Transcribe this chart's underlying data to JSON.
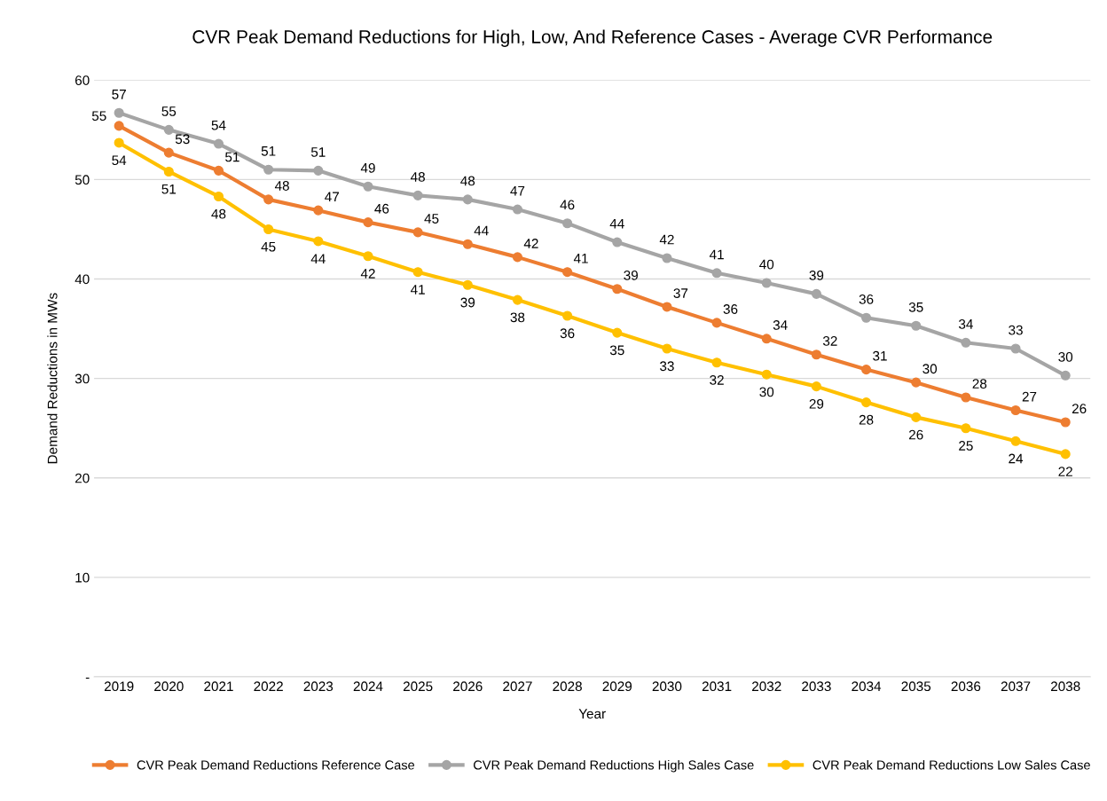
{
  "chart_data": {
    "type": "line",
    "title": "CVR Peak Demand Reductions for High, Low, And Reference Cases - Average CVR Performance",
    "xlabel": "Year",
    "ylabel": "Demand Reductions in MWs",
    "categories": [
      "2019",
      "2020",
      "2021",
      "2022",
      "2023",
      "2024",
      "2025",
      "2026",
      "2027",
      "2028",
      "2029",
      "2030",
      "2031",
      "2032",
      "2033",
      "2034",
      "2035",
      "2036",
      "2037",
      "2038"
    ],
    "series": [
      {
        "name": "CVR Peak Demand Reductions Reference Case",
        "color": "#ed7d31",
        "values": [
          55.4,
          52.7,
          50.9,
          48.0,
          46.9,
          45.7,
          44.7,
          43.5,
          42.2,
          40.7,
          39.0,
          37.2,
          35.6,
          34.0,
          32.4,
          30.9,
          29.6,
          28.1,
          26.8,
          25.6
        ],
        "value_labels": [
          "55",
          "53",
          "51",
          "48",
          "47",
          "46",
          "45",
          "44",
          "42",
          "41",
          "39",
          "37",
          "36",
          "34",
          "32",
          "31",
          "30",
          "28",
          "27",
          "26"
        ]
      },
      {
        "name": "CVR Peak Demand Reductions High Sales Case",
        "color": "#a5a5a5",
        "values": [
          56.7,
          55.0,
          53.6,
          51.0,
          50.9,
          49.3,
          48.4,
          48.0,
          47.0,
          45.6,
          43.7,
          42.1,
          40.6,
          39.6,
          38.5,
          36.1,
          35.3,
          33.6,
          33.0,
          30.3
        ],
        "value_labels": [
          "57",
          "55",
          "54",
          "51",
          "51",
          "49",
          "48",
          "48",
          "47",
          "46",
          "44",
          "42",
          "41",
          "40",
          "39",
          "36",
          "35",
          "34",
          "33",
          "30"
        ]
      },
      {
        "name": "CVR Peak Demand Reductions Low Sales Case",
        "color": "#ffc000",
        "values": [
          53.7,
          50.8,
          48.3,
          45.0,
          43.8,
          42.3,
          40.7,
          39.4,
          37.9,
          36.3,
          34.6,
          33.0,
          31.6,
          30.4,
          29.2,
          27.6,
          26.1,
          25.0,
          23.7,
          22.4
        ],
        "value_labels": [
          "54",
          "51",
          "48",
          "45",
          "44",
          "42",
          "41",
          "39",
          "38",
          "36",
          "35",
          "33",
          "32",
          "30",
          "29",
          "28",
          "26",
          "25",
          "24",
          "22"
        ]
      }
    ],
    "ylim": [
      0,
      60
    ],
    "yticks": [
      {
        "value": 0,
        "label": "-"
      },
      10,
      20,
      30,
      40,
      50,
      60
    ],
    "grid": "y",
    "legend": "bottom",
    "marker": "circle",
    "line_style": "solid"
  }
}
